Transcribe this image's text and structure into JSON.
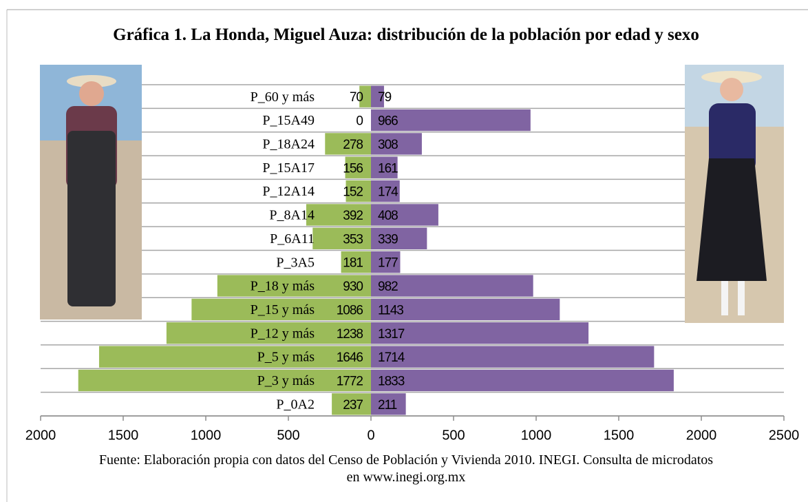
{
  "chart_data": {
    "type": "pyramid",
    "title": "Gráfica 1. La Honda, Miguel Auza: distribución de la población por edad y sexo",
    "source": "Fuente: Elaboración propia con datos del Censo de Población y Vivienda 2010. INEGI. Consulta de microdatos en www.inegi.org.mx",
    "categories": [
      "P_60 y más",
      "P_15A49",
      "P_18A24",
      "P_15A17",
      "P_12A14",
      "P_8A14",
      "P_6A11",
      "P_3A5",
      "P_18 y más",
      "P_15 y más",
      "P_12 y más",
      "P_5 y más",
      "P_3 y más",
      "P_0A2"
    ],
    "series": [
      {
        "side": "left",
        "color": "#9bbb59",
        "values": [
          70,
          0,
          278,
          156,
          152,
          392,
          353,
          181,
          930,
          1086,
          1238,
          1646,
          1772,
          237
        ]
      },
      {
        "side": "right",
        "color": "#8064a2",
        "values": [
          79,
          966,
          308,
          161,
          174,
          408,
          339,
          177,
          982,
          1143,
          1317,
          1714,
          1833,
          211
        ]
      }
    ],
    "xlim": [
      -2000,
      2500
    ],
    "xticks": [
      {
        "value": -2000,
        "label": "2000"
      },
      {
        "value": -1500,
        "label": "1500"
      },
      {
        "value": -1000,
        "label": "1000"
      },
      {
        "value": -500,
        "label": "500"
      },
      0,
      500,
      1000,
      1500,
      2000,
      2500
    ]
  }
}
